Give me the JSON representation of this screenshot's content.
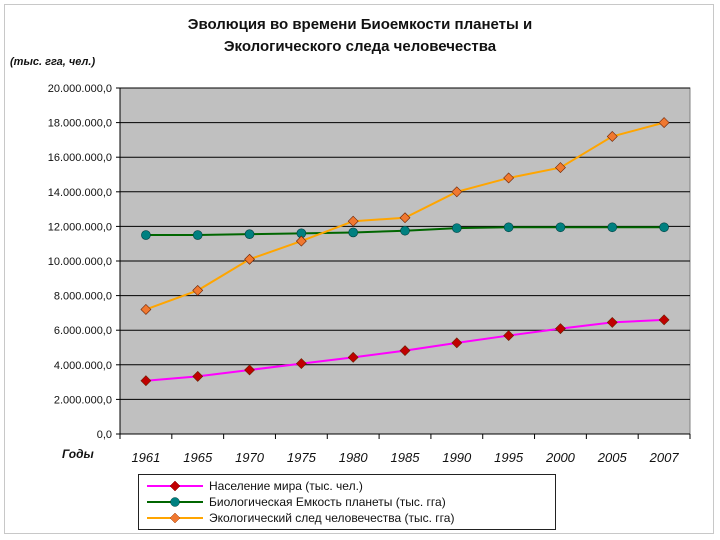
{
  "unit_label": "(тыс. гга, чел.)",
  "x_axis_label": "Годы",
  "chart_data": {
    "type": "line",
    "title": "Эволюция во времени Биоемкости планеты и Экологического следа человечества",
    "title_lines": [
      "Эволюция во времени Биоемкости планеты и",
      "Экологического следа человечества"
    ],
    "categories": [
      "1961",
      "1965",
      "1970",
      "1975",
      "1980",
      "1985",
      "1990",
      "1995",
      "2000",
      "2005",
      "2007"
    ],
    "ylim": [
      0,
      20000000
    ],
    "ytick_step": 2000000,
    "ytick_labels": [
      "0,0",
      "2.000.000,0",
      "4.000.000,0",
      "6.000.000,0",
      "8.000.000,0",
      "10.000.000,0",
      "12.000.000,0",
      "14.000.000,0",
      "16.000.000,0",
      "18.000.000,0",
      "20.000.000,0"
    ],
    "grid": true,
    "legend_position": "bottom",
    "plot_background": "#c0c0c0",
    "series": [
      {
        "name": "Население мира (тыс. чел.)",
        "color": "#ff00ff",
        "marker_color": "#c00000",
        "marker": "diamond",
        "values": [
          3080000,
          3330000,
          3700000,
          4070000,
          4430000,
          4820000,
          5270000,
          5690000,
          6090000,
          6450000,
          6600000
        ]
      },
      {
        "name": "Биологическая Емкость планеты (тыс. гга)",
        "color": "#006600",
        "marker_color": "#008080",
        "marker": "circle",
        "values": [
          11500000,
          11500000,
          11550000,
          11600000,
          11650000,
          11750000,
          11900000,
          11950000,
          11950000,
          11950000,
          11950000
        ]
      },
      {
        "name": "Экологический след человечества (тыс. гга)",
        "color": "#ffa500",
        "marker_color": "#f07830",
        "marker": "diamond",
        "values": [
          7200000,
          8300000,
          10100000,
          11150000,
          12300000,
          12500000,
          14000000,
          14800000,
          15400000,
          17200000,
          18000000
        ]
      }
    ]
  }
}
